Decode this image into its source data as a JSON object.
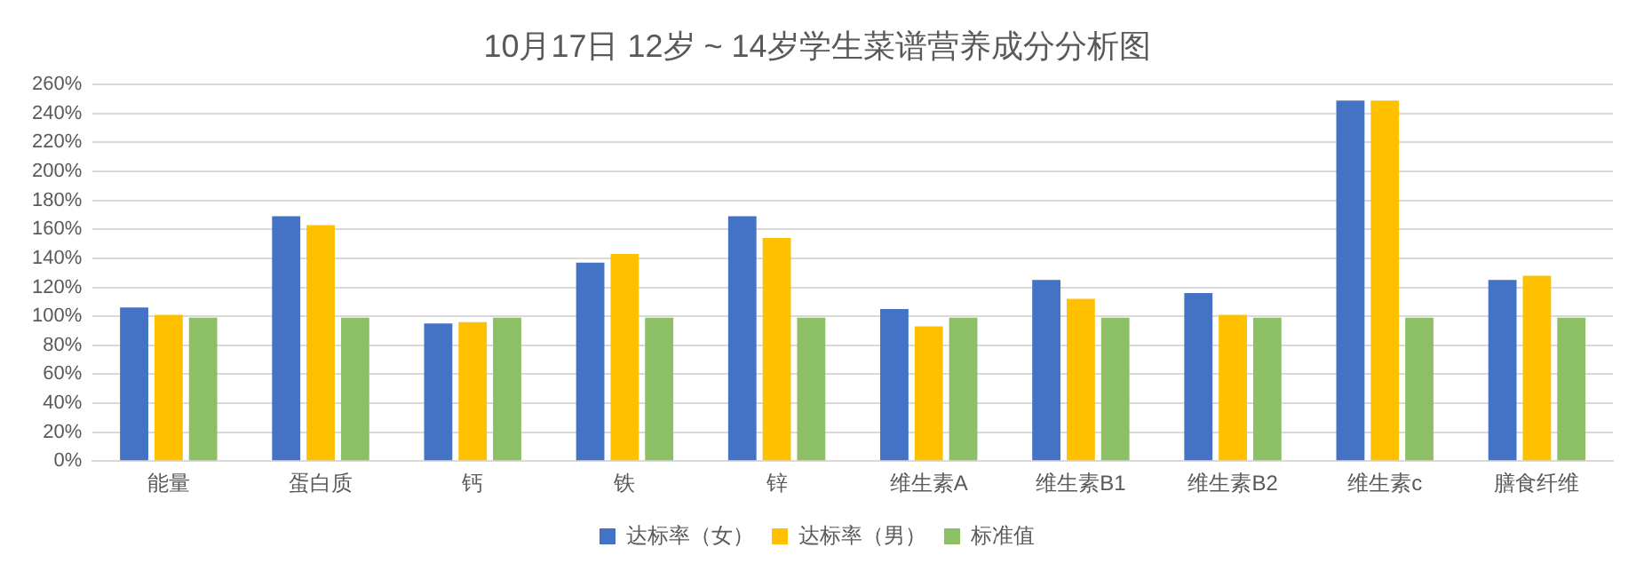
{
  "chart_data": {
    "type": "bar",
    "title": "10月17日 12岁 ~ 14岁学生菜谱营养成分分析图",
    "categories": [
      "能量",
      "蛋白质",
      "钙",
      "铁",
      "锌",
      "维生素A",
      "维生素B1",
      "维生素B2",
      "维生素c",
      "膳食纤维"
    ],
    "series": [
      {
        "name": "达标率（女）",
        "color": "#4472c4",
        "values": [
          106,
          169,
          95,
          137,
          169,
          105,
          125,
          116,
          249,
          125
        ]
      },
      {
        "name": "达标率（男）",
        "color": "#ffc000",
        "values": [
          101,
          163,
          96,
          143,
          154,
          93,
          112,
          101,
          249,
          128
        ]
      },
      {
        "name": "标准值",
        "color": "#8dc066",
        "values": [
          99,
          99,
          99,
          99,
          99,
          99,
          99,
          99,
          99,
          99
        ]
      }
    ],
    "ylim": [
      0,
      260
    ],
    "yticks": [
      {
        "value": 0,
        "label": "0%"
      },
      {
        "value": 20,
        "label": "20%"
      },
      {
        "value": 40,
        "label": "40%"
      },
      {
        "value": 60,
        "label": "60%"
      },
      {
        "value": 80,
        "label": "80%"
      },
      {
        "value": 100,
        "label": "100%"
      },
      {
        "value": 120,
        "label": "120%"
      },
      {
        "value": 140,
        "label": "140%"
      },
      {
        "value": 160,
        "label": "160%"
      },
      {
        "value": 180,
        "label": "180%"
      },
      {
        "value": 200,
        "label": "200%"
      },
      {
        "value": 220,
        "label": "220%"
      },
      {
        "value": 240,
        "label": "240%"
      },
      {
        "value": 260,
        "label": "260%"
      }
    ],
    "grid": "y",
    "legend": "bottom"
  }
}
